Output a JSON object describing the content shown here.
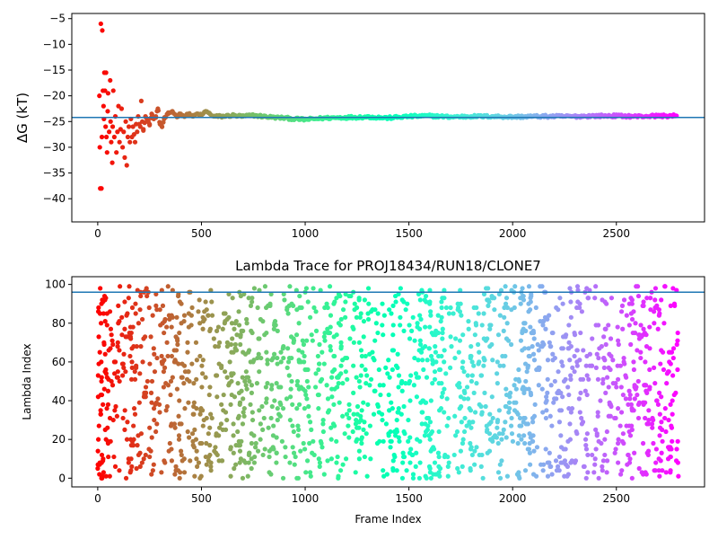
{
  "chart_data": [
    {
      "type": "scatter",
      "title": "",
      "xlabel": "",
      "ylabel": "ΔG (kT)",
      "xlim": [
        -125,
        2925
      ],
      "ylim": [
        -44.5,
        -4
      ],
      "xticks": [
        0,
        500,
        1000,
        1500,
        2000,
        2500
      ],
      "yticks": [
        -5,
        -10,
        -15,
        -20,
        -25,
        -30,
        -35,
        -40
      ],
      "grid": false,
      "legend": "none",
      "colormap": "rainbow (red at frame 0 to violet at last frame)",
      "reference_line": {
        "y": -24.2,
        "color": "#1f77b4"
      },
      "series": [
        {
          "points": [
            [
              8,
              -20
            ],
            [
              10,
              -30
            ],
            [
              12,
              -38
            ],
            [
              15,
              -6
            ],
            [
              18,
              -38
            ],
            [
              20,
              -28
            ],
            [
              22,
              -7.3
            ],
            [
              25,
              -19
            ],
            [
              28,
              -22
            ],
            [
              30,
              -24.5
            ],
            [
              32,
              -15.5
            ],
            [
              35,
              -19
            ],
            [
              38,
              -26
            ],
            [
              40,
              -15.5
            ],
            [
              42,
              -28
            ],
            [
              45,
              -31
            ],
            [
              48,
              -23
            ],
            [
              50,
              -19.5
            ],
            [
              55,
              -27
            ],
            [
              60,
              -17
            ],
            [
              62,
              -25
            ],
            [
              65,
              -29
            ],
            [
              70,
              -33
            ],
            [
              72,
              -26
            ],
            [
              75,
              -19
            ],
            [
              80,
              -28
            ],
            [
              85,
              -24
            ],
            [
              90,
              -31
            ],
            [
              95,
              -27
            ],
            [
              100,
              -22
            ],
            [
              105,
              -29
            ],
            [
              110,
              -26.5
            ],
            [
              115,
              -22.5
            ],
            [
              120,
              -30
            ],
            [
              125,
              -27
            ],
            [
              130,
              -32
            ],
            [
              135,
              -25
            ],
            [
              140,
              -33.5
            ],
            [
              145,
              -28
            ],
            [
              150,
              -26
            ],
            [
              155,
              -29
            ],
            [
              160,
              -24.5
            ],
            [
              165,
              -28
            ],
            [
              170,
              -26
            ],
            [
              175,
              -27.5
            ],
            [
              180,
              -29
            ],
            [
              185,
              -25.5
            ],
            [
              190,
              -27
            ],
            [
              195,
              -24
            ],
            [
              200,
              -25.5
            ],
            [
              205,
              -26
            ],
            [
              210,
              -21
            ],
            [
              215,
              -25
            ],
            [
              220,
              -26.5
            ],
            [
              230,
              -24
            ],
            [
              240,
              -25
            ],
            [
              250,
              -25.5
            ],
            [
              260,
              -23.5
            ],
            [
              270,
              -24.5
            ],
            [
              280,
              -24
            ],
            [
              290,
              -22.5
            ],
            [
              300,
              -25.5
            ],
            [
              310,
              -26
            ],
            [
              320,
              -24.5
            ],
            [
              340,
              -23.5
            ],
            [
              360,
              -23
            ],
            [
              380,
              -24
            ],
            [
              400,
              -23.5
            ],
            [
              420,
              -24
            ],
            [
              440,
              -23.5
            ],
            [
              460,
              -24
            ],
            [
              480,
              -23.5
            ],
            [
              500,
              -23.8
            ],
            [
              520,
              -23
            ],
            [
              540,
              -23.5
            ],
            [
              560,
              -24
            ],
            [
              600,
              -24
            ],
            [
              650,
              -23.8
            ],
            [
              700,
              -24
            ],
            [
              750,
              -23.8
            ],
            [
              800,
              -24
            ],
            [
              850,
              -24.2
            ],
            [
              900,
              -24.3
            ],
            [
              950,
              -24.5
            ],
            [
              1000,
              -24.6
            ],
            [
              1100,
              -24.3
            ],
            [
              1200,
              -24.2
            ],
            [
              1300,
              -24.1
            ],
            [
              1400,
              -24.3
            ],
            [
              1500,
              -24
            ],
            [
              1600,
              -23.9
            ],
            [
              1700,
              -24.1
            ],
            [
              1800,
              -24
            ],
            [
              1900,
              -24
            ],
            [
              2000,
              -24.1
            ],
            [
              2100,
              -24
            ],
            [
              2200,
              -24
            ],
            [
              2300,
              -24
            ],
            [
              2400,
              -23.9
            ],
            [
              2500,
              -23.9
            ],
            [
              2600,
              -24
            ],
            [
              2700,
              -23.9
            ],
            [
              2790,
              -23.9
            ]
          ]
        }
      ]
    },
    {
      "type": "scatter",
      "title": "Lambda Trace for PROJ18434/RUN18/CLONE7",
      "xlabel": "Frame Index",
      "ylabel": "Lambda Index",
      "xlim": [
        -125,
        2925
      ],
      "ylim": [
        -4.5,
        104
      ],
      "xticks": [
        0,
        500,
        1000,
        1500,
        2000,
        2500
      ],
      "yticks": [
        0,
        20,
        40,
        60,
        80,
        100
      ],
      "grid": false,
      "legend": "none",
      "colormap": "rainbow (red at frame 0 to violet at last frame)",
      "reference_line": {
        "y": 96,
        "color": "#1f77b4"
      },
      "series": [
        {
          "n_frames": 2800,
          "points": [
            [
              0,
              5
            ],
            [
              2,
              42
            ],
            [
              4,
              88
            ],
            [
              5,
              59
            ],
            [
              6,
              27
            ],
            [
              8,
              2
            ],
            [
              10,
              65
            ],
            [
              12,
              98
            ],
            [
              14,
              33
            ],
            [
              16,
              80
            ],
            [
              18,
              50
            ],
            [
              20,
              12
            ],
            [
              22,
              92
            ],
            [
              25,
              38
            ],
            [
              28,
              3
            ],
            [
              30,
              70
            ],
            [
              35,
              55
            ],
            [
              40,
              20
            ],
            [
              45,
              85
            ],
            [
              50,
              45
            ],
            [
              2790,
              97
            ],
            [
              2780,
              90
            ],
            [
              2770,
              40
            ],
            [
              2760,
              65
            ],
            [
              2750,
              10
            ],
            [
              2740,
              3
            ],
            [
              2730,
              80
            ],
            [
              2720,
              25
            ]
          ]
        }
      ]
    }
  ]
}
